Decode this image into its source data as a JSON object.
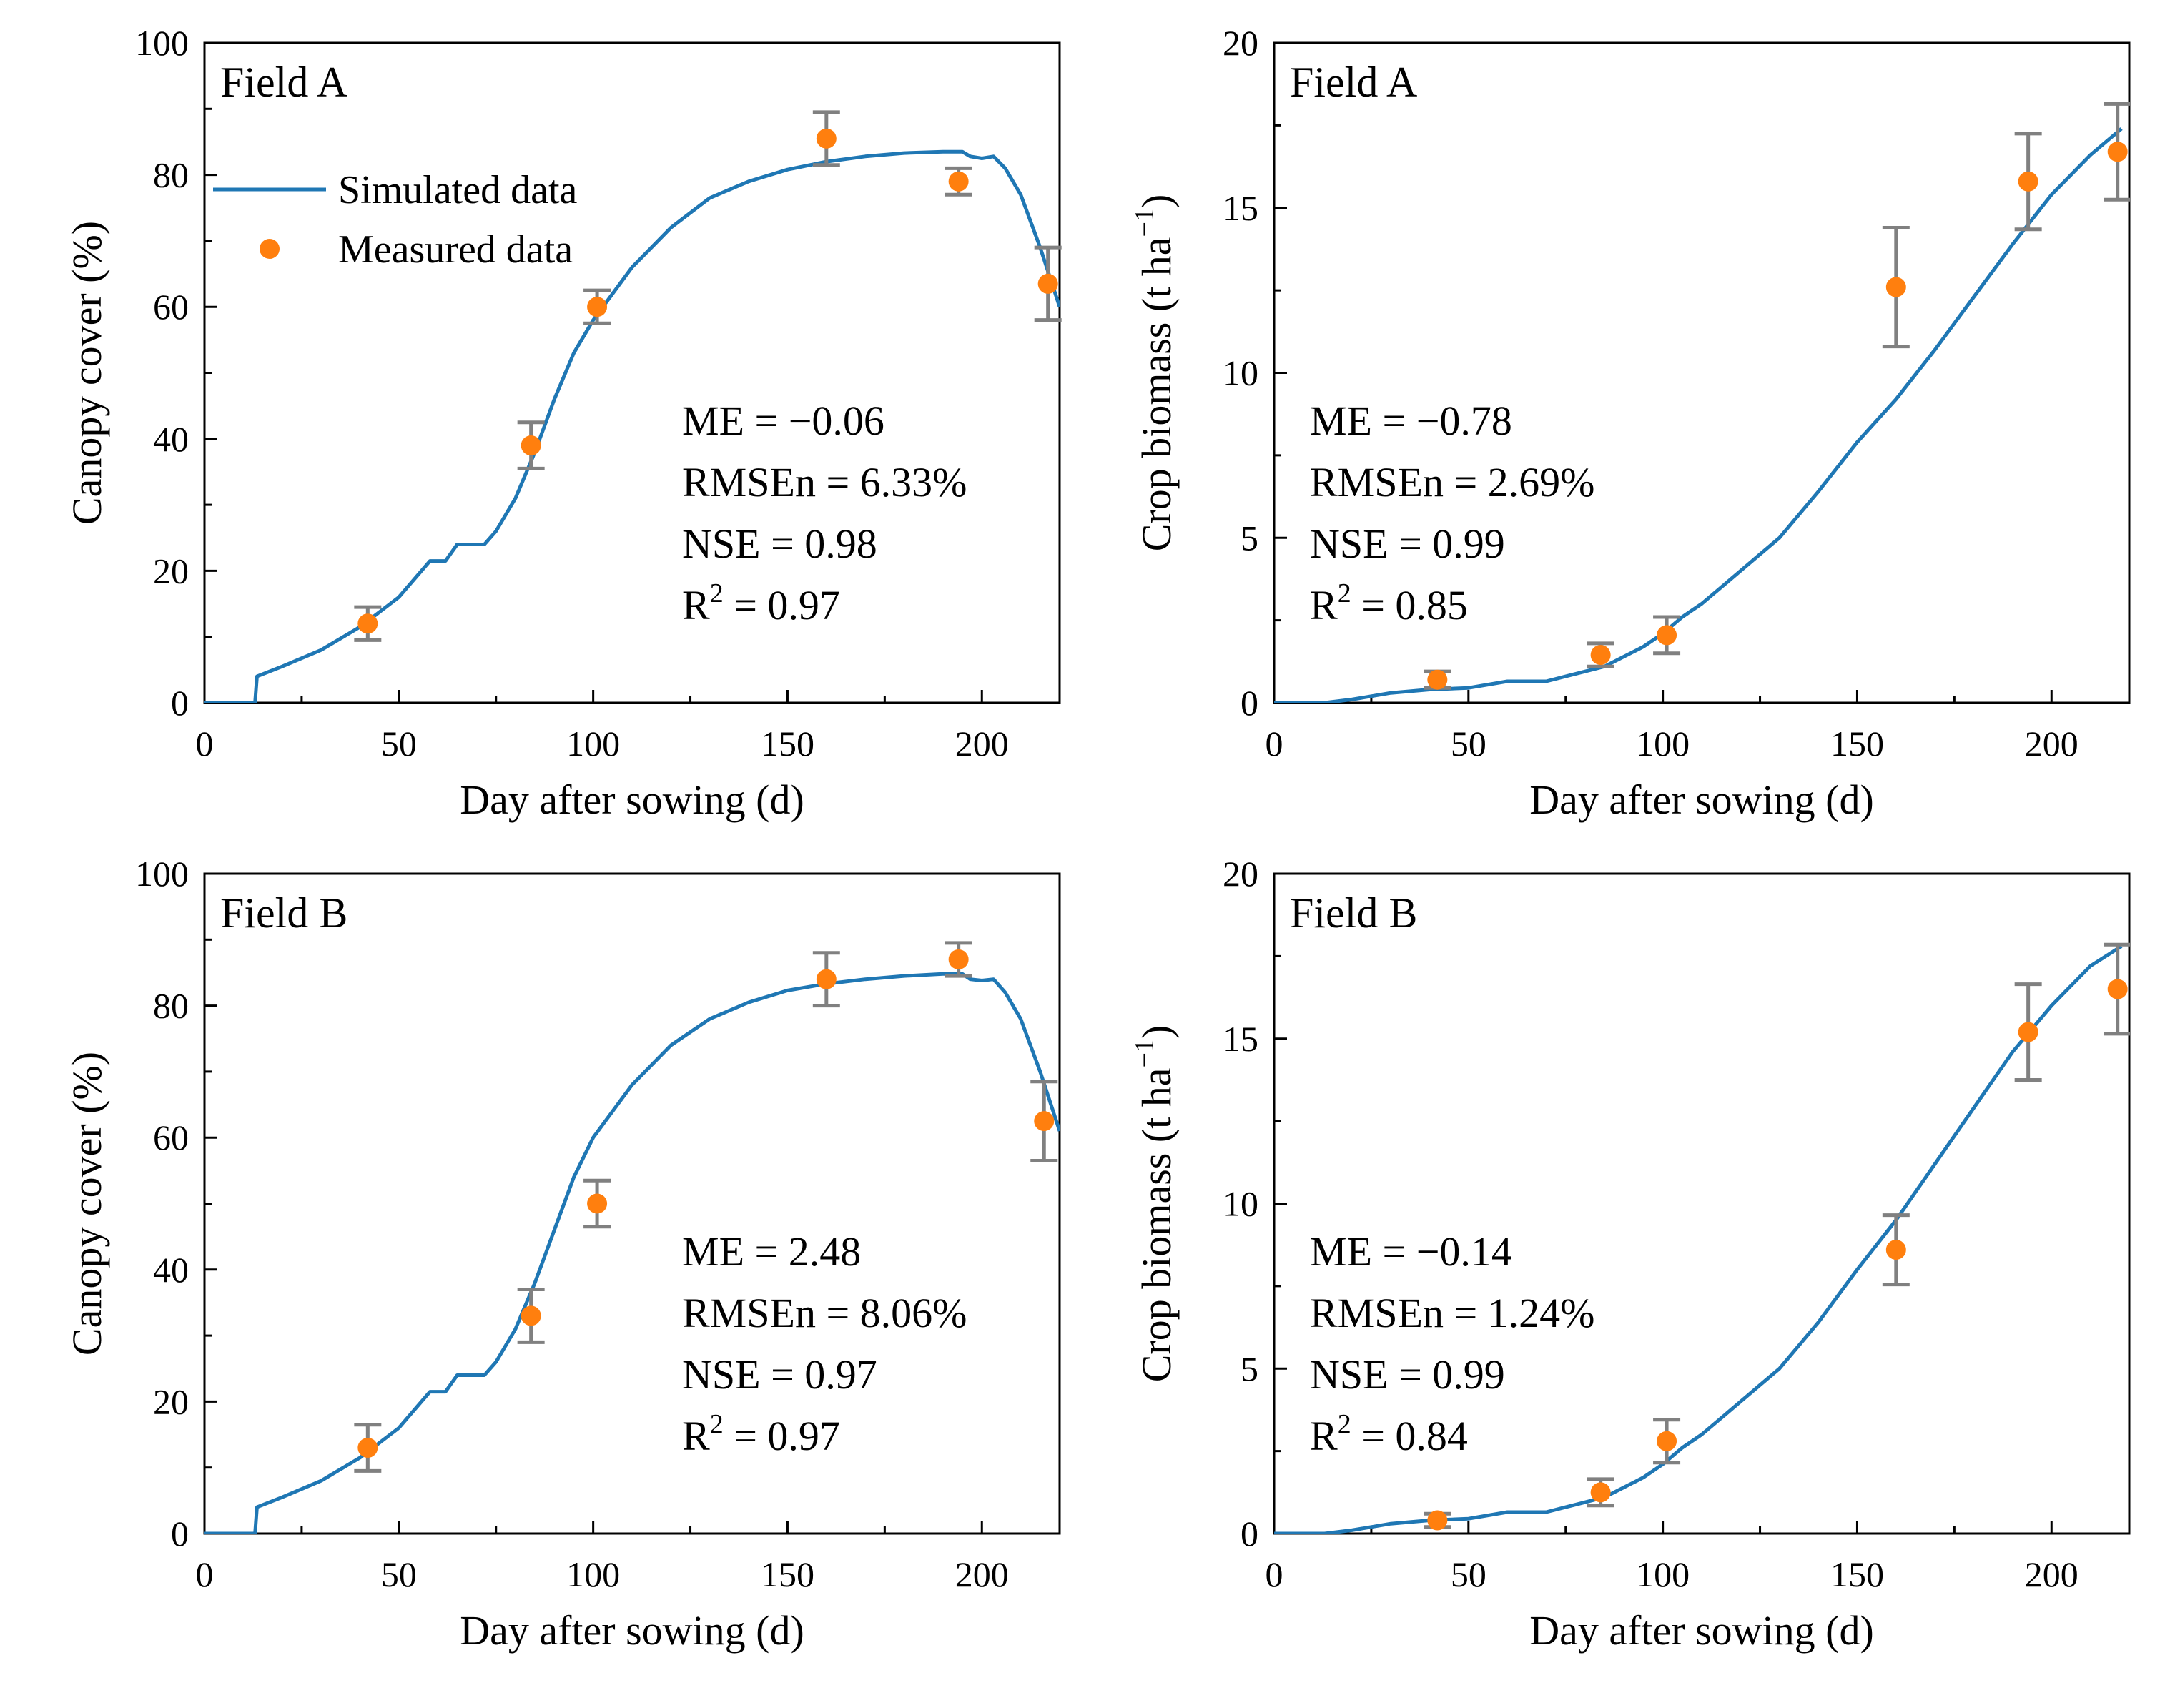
{
  "figure": {
    "legend": {
      "simulated_label": "Simulated data",
      "measured_label": "Measured data"
    },
    "colors": {
      "simulated": "#1f77b4",
      "measured": "#ff7f0e",
      "errorbar": "#808080",
      "axis": "#000000"
    }
  },
  "chart_data": [
    {
      "type": "line+scatter",
      "panel_label": "Field A",
      "xlabel": "Day after sowing (d)",
      "ylabel": "Canopy cover (%)",
      "xlim": [
        0,
        220
      ],
      "ylim": [
        0,
        100
      ],
      "xticks": [
        0,
        50,
        100,
        150,
        200
      ],
      "yticks": [
        0,
        20,
        40,
        60,
        80,
        100
      ],
      "xtick_labels": [
        "0",
        "50",
        "100",
        "150",
        "200"
      ],
      "ytick_labels": [
        "0",
        "20",
        "40",
        "60",
        "80",
        "100"
      ],
      "legend": true,
      "legend_position": "upper-left",
      "stats": [
        {
          "text": "ME = −0.06"
        },
        {
          "text": "RMSEn = 6.33%"
        },
        {
          "text": "NSE = 0.98"
        },
        {
          "base": "R",
          "sup": "2",
          "text": " = 0.97"
        }
      ],
      "series": [
        {
          "name": "Simulated data",
          "kind": "line",
          "x": [
            0,
            13,
            13.5,
            20,
            30,
            40,
            50,
            58,
            62,
            65,
            72,
            75,
            80,
            85,
            90,
            95,
            100,
            110,
            120,
            130,
            140,
            150,
            160,
            170,
            180,
            190,
            195,
            197,
            200,
            203,
            206,
            210,
            215,
            220
          ],
          "y": [
            0,
            0,
            4,
            5.5,
            8,
            11.5,
            16,
            21.5,
            21.5,
            24,
            24,
            26,
            31,
            38,
            46,
            53,
            58,
            66,
            72,
            76.5,
            79,
            80.8,
            82,
            82.8,
            83.3,
            83.5,
            83.5,
            82.8,
            82.5,
            82.8,
            81,
            77,
            69,
            60
          ]
        },
        {
          "name": "Measured data",
          "kind": "scatter",
          "x": [
            42,
            84,
            101,
            160,
            194,
            217
          ],
          "y": [
            12,
            39,
            60,
            85.5,
            79,
            63.5
          ],
          "err": [
            2.5,
            3.5,
            2.5,
            4,
            2,
            5.5
          ]
        }
      ]
    },
    {
      "type": "line+scatter",
      "panel_label": "Field A",
      "xlabel": "Day after sowing (d)",
      "ylabel": "Crop biomass (t ha⁻¹)",
      "ylabel_base": "Crop biomass (t ha",
      "ylabel_sup": "−1",
      "ylabel_end": ")",
      "xlim": [
        0,
        220
      ],
      "ylim": [
        0,
        20
      ],
      "xticks": [
        0,
        50,
        100,
        150,
        200
      ],
      "yticks": [
        0,
        5,
        10,
        15,
        20
      ],
      "xtick_labels": [
        "0",
        "50",
        "100",
        "150",
        "200"
      ],
      "ytick_labels": [
        "0",
        "5",
        "10",
        "15",
        "20"
      ],
      "legend": false,
      "stats": [
        {
          "text": "ME = −0.78"
        },
        {
          "text": "RMSEn = 2.69%"
        },
        {
          "text": "NSE = 0.99"
        },
        {
          "base": "R",
          "sup": "2",
          "text": " = 0.85"
        }
      ],
      "series": [
        {
          "name": "Simulated data",
          "kind": "line",
          "x": [
            0,
            13,
            20,
            30,
            40,
            50,
            55,
            60,
            70,
            75,
            80,
            85,
            90,
            95,
            100,
            105,
            110,
            115,
            120,
            125,
            130,
            140,
            150,
            160,
            170,
            180,
            190,
            200,
            210,
            218
          ],
          "y": [
            0,
            0,
            0.1,
            0.3,
            0.4,
            0.45,
            0.55,
            0.65,
            0.65,
            0.8,
            0.95,
            1.1,
            1.4,
            1.7,
            2.1,
            2.6,
            3.0,
            3.5,
            4.0,
            4.5,
            5.0,
            6.4,
            7.9,
            9.2,
            10.7,
            12.3,
            13.9,
            15.4,
            16.6,
            17.4
          ]
        },
        {
          "name": "Measured data",
          "kind": "scatter",
          "x": [
            42,
            84,
            101,
            160,
            194,
            217
          ],
          "y": [
            0.7,
            1.45,
            2.05,
            12.6,
            15.8,
            16.7
          ],
          "err": [
            0.25,
            0.35,
            0.55,
            1.8,
            1.45,
            1.45
          ]
        }
      ]
    },
    {
      "type": "line+scatter",
      "panel_label": "Field B",
      "xlabel": "Day after sowing (d)",
      "ylabel": "Canopy cover (%)",
      "xlim": [
        0,
        220
      ],
      "ylim": [
        0,
        100
      ],
      "xticks": [
        0,
        50,
        100,
        150,
        200
      ],
      "yticks": [
        0,
        20,
        40,
        60,
        80,
        100
      ],
      "xtick_labels": [
        "0",
        "50",
        "100",
        "150",
        "200"
      ],
      "ytick_labels": [
        "0",
        "20",
        "40",
        "60",
        "80",
        "100"
      ],
      "legend": false,
      "stats": [
        {
          "text": "ME = 2.48"
        },
        {
          "text": "RMSEn = 8.06%"
        },
        {
          "text": "NSE = 0.97"
        },
        {
          "base": "R",
          "sup": "2",
          "text": " = 0.97"
        }
      ],
      "series": [
        {
          "name": "Simulated data",
          "kind": "line",
          "x": [
            0,
            13,
            13.5,
            20,
            30,
            40,
            50,
            58,
            62,
            65,
            72,
            75,
            80,
            85,
            90,
            95,
            100,
            110,
            120,
            130,
            140,
            150,
            160,
            170,
            180,
            190,
            195,
            197,
            200,
            203,
            206,
            210,
            215,
            220
          ],
          "y": [
            0,
            0,
            4,
            5.5,
            8,
            11.5,
            16,
            21.5,
            21.5,
            24,
            24,
            26,
            31,
            38,
            46,
            54,
            60,
            68,
            74,
            78,
            80.5,
            82.3,
            83.3,
            84,
            84.5,
            84.8,
            84.8,
            84,
            83.8,
            84,
            82,
            78,
            70,
            61
          ]
        },
        {
          "name": "Measured data",
          "kind": "scatter",
          "x": [
            42,
            84,
            101,
            160,
            194,
            216
          ],
          "y": [
            13,
            33,
            50,
            84,
            87,
            62.5
          ],
          "err": [
            3.5,
            4,
            3.5,
            4,
            2.5,
            6
          ]
        }
      ]
    },
    {
      "type": "line+scatter",
      "panel_label": "Field B",
      "xlabel": "Day after sowing (d)",
      "ylabel": "Crop biomass (t ha⁻¹)",
      "ylabel_base": "Crop biomass (t ha",
      "ylabel_sup": "−1",
      "ylabel_end": ")",
      "xlim": [
        0,
        220
      ],
      "ylim": [
        0,
        20
      ],
      "xticks": [
        0,
        50,
        100,
        150,
        200
      ],
      "yticks": [
        0,
        5,
        10,
        15,
        20
      ],
      "xtick_labels": [
        "0",
        "50",
        "100",
        "150",
        "200"
      ],
      "ytick_labels": [
        "0",
        "5",
        "10",
        "15",
        "20"
      ],
      "legend": false,
      "stats": [
        {
          "text": "ME = −0.14"
        },
        {
          "text": "RMSEn = 1.24%"
        },
        {
          "text": "NSE = 0.99"
        },
        {
          "base": "R",
          "sup": "2",
          "text": " = 0.84"
        }
      ],
      "series": [
        {
          "name": "Simulated data",
          "kind": "line",
          "x": [
            0,
            13,
            20,
            30,
            40,
            50,
            55,
            60,
            70,
            75,
            80,
            85,
            90,
            95,
            100,
            105,
            110,
            115,
            120,
            125,
            130,
            140,
            150,
            160,
            170,
            180,
            190,
            200,
            210,
            218
          ],
          "y": [
            0,
            0,
            0.1,
            0.3,
            0.4,
            0.45,
            0.55,
            0.65,
            0.65,
            0.8,
            0.95,
            1.1,
            1.4,
            1.7,
            2.1,
            2.6,
            3.0,
            3.5,
            4.0,
            4.5,
            5.0,
            6.4,
            8.0,
            9.5,
            11.2,
            12.9,
            14.6,
            16.0,
            17.2,
            17.8
          ]
        },
        {
          "name": "Measured data",
          "kind": "scatter",
          "x": [
            42,
            84,
            101,
            160,
            194,
            217
          ],
          "y": [
            0.4,
            1.25,
            2.8,
            8.6,
            15.2,
            16.5
          ],
          "err": [
            0.2,
            0.4,
            0.65,
            1.05,
            1.45,
            1.35
          ]
        }
      ]
    }
  ]
}
